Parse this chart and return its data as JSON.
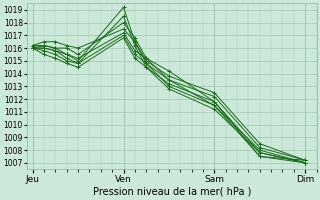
{
  "title": "",
  "xlabel": "Pression niveau de la mer( hPa )",
  "ylabel": "",
  "bg_color": "#cce8d8",
  "grid_color": "#aaccb8",
  "line_color": "#1a6b1a",
  "marker_color": "#1a6b1a",
  "ylim": [
    1006.5,
    1019.5
  ],
  "yticks": [
    1007,
    1008,
    1009,
    1010,
    1011,
    1012,
    1013,
    1014,
    1015,
    1016,
    1017,
    1018,
    1019
  ],
  "xtick_labels": [
    "Jeu",
    "Ven",
    "Sam",
    "Dim"
  ],
  "xtick_positions": [
    0,
    8,
    16,
    24
  ],
  "xlim": [
    -0.5,
    25
  ],
  "lines": [
    {
      "x": [
        0,
        1,
        2,
        3,
        4,
        8,
        9,
        10,
        12,
        16,
        20,
        24
      ],
      "y": [
        1016.0,
        1016.2,
        1016.0,
        1015.5,
        1015.0,
        1019.2,
        1016.5,
        1014.8,
        1013.0,
        1011.5,
        1008.0,
        1007.0
      ]
    },
    {
      "x": [
        0,
        1,
        2,
        3,
        4,
        8,
        9,
        10,
        12,
        16,
        20,
        24
      ],
      "y": [
        1016.0,
        1016.0,
        1015.8,
        1015.2,
        1014.8,
        1018.5,
        1016.2,
        1014.5,
        1012.8,
        1011.2,
        1007.8,
        1007.0
      ]
    },
    {
      "x": [
        0,
        1,
        2,
        3,
        4,
        8,
        9,
        10,
        12,
        16,
        20,
        24
      ],
      "y": [
        1016.2,
        1016.2,
        1016.0,
        1016.0,
        1015.5,
        1018.0,
        1016.8,
        1015.2,
        1013.5,
        1012.2,
        1008.2,
        1007.2
      ]
    },
    {
      "x": [
        0,
        1,
        2,
        3,
        4,
        8,
        9,
        10,
        12,
        16,
        20,
        24
      ],
      "y": [
        1016.2,
        1016.5,
        1016.5,
        1016.2,
        1016.0,
        1017.5,
        1016.5,
        1015.0,
        1013.8,
        1012.5,
        1008.5,
        1007.2
      ]
    },
    {
      "x": [
        0,
        1,
        2,
        3,
        4,
        8,
        9,
        10,
        12,
        16,
        20,
        24
      ],
      "y": [
        1016.0,
        1016.0,
        1015.8,
        1015.5,
        1015.2,
        1017.2,
        1015.8,
        1015.2,
        1014.2,
        1011.8,
        1007.8,
        1007.0
      ]
    },
    {
      "x": [
        0,
        1,
        2,
        3,
        4,
        8,
        9,
        10,
        12,
        16,
        20,
        24
      ],
      "y": [
        1016.0,
        1015.8,
        1015.5,
        1015.0,
        1014.8,
        1017.0,
        1015.5,
        1014.8,
        1013.5,
        1011.5,
        1007.5,
        1007.0
      ]
    },
    {
      "x": [
        0,
        1,
        2,
        3,
        4,
        8,
        9,
        10,
        12,
        16,
        20,
        24
      ],
      "y": [
        1016.0,
        1015.5,
        1015.2,
        1014.8,
        1014.5,
        1016.8,
        1015.2,
        1014.5,
        1013.2,
        1011.8,
        1007.5,
        1007.2
      ]
    }
  ]
}
